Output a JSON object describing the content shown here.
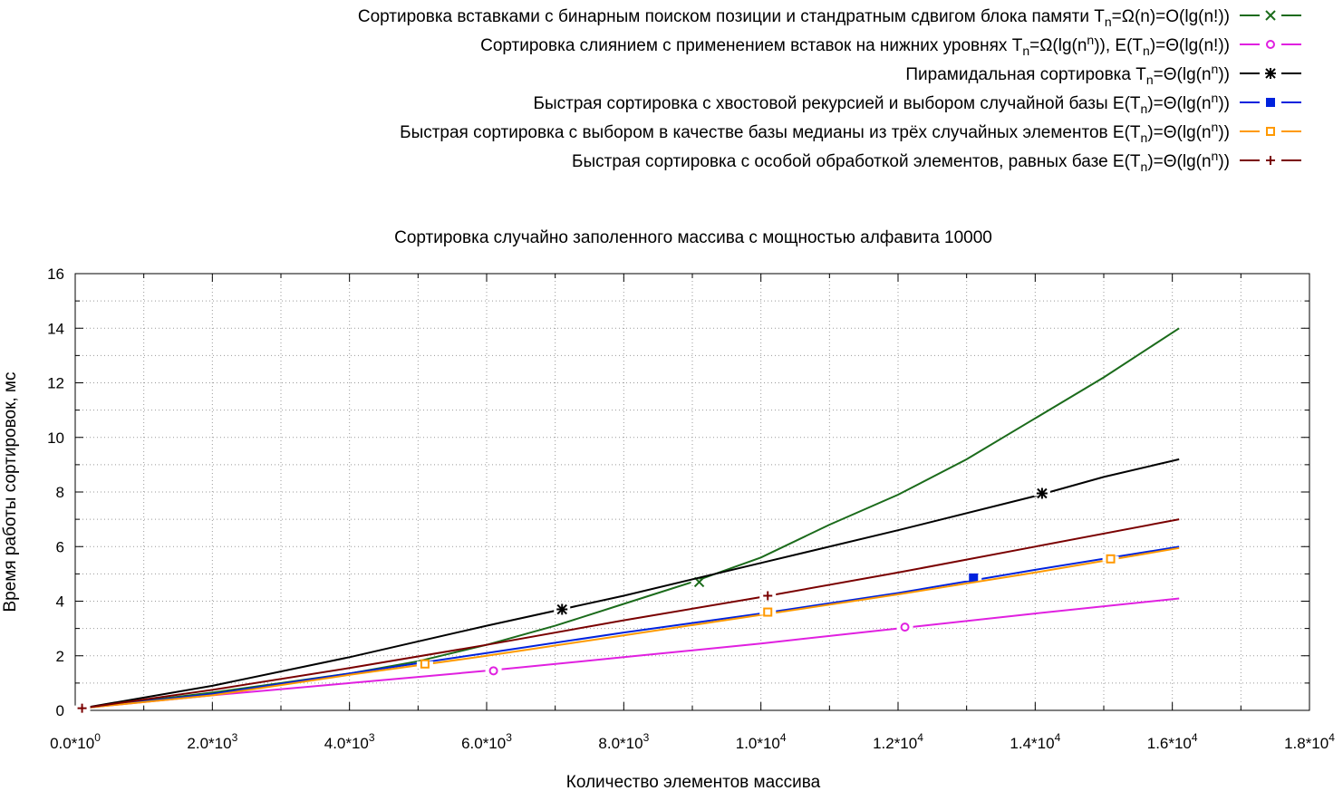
{
  "chart_data": {
    "type": "line",
    "title": "Сортировка случайно заполенного массива с мощностью алфавита 10000",
    "xlabel": "Количество элементов массива",
    "ylabel": "Время работы сортировок, мс",
    "xlim": [
      0,
      18000
    ],
    "ylim": [
      0,
      16
    ],
    "grid": true,
    "legend_position": "top-right, above plot",
    "x_ticks": [
      {
        "value": 0,
        "mant": "0.0*10",
        "exp": "0"
      },
      {
        "value": 2000,
        "mant": "2.0*10",
        "exp": "3"
      },
      {
        "value": 4000,
        "mant": "4.0*10",
        "exp": "3"
      },
      {
        "value": 6000,
        "mant": "6.0*10",
        "exp": "3"
      },
      {
        "value": 8000,
        "mant": "8.0*10",
        "exp": "3"
      },
      {
        "value": 10000,
        "mant": "1.0*10",
        "exp": "4"
      },
      {
        "value": 12000,
        "mant": "1.2*10",
        "exp": "4"
      },
      {
        "value": 14000,
        "mant": "1.4*10",
        "exp": "4"
      },
      {
        "value": 16000,
        "mant": "1.6*10",
        "exp": "4"
      },
      {
        "value": 18000,
        "mant": "1.8*10",
        "exp": "4"
      }
    ],
    "y_ticks": [
      0,
      2,
      4,
      6,
      8,
      10,
      12,
      14,
      16
    ],
    "series": [
      {
        "name": [
          {
            "t": "Сортировка вставками с бинарным поиском позиции и стандратным сдвигом блока памяти T"
          },
          {
            "t": "n",
            "sub": true
          },
          {
            "t": "=Ω(n)=O(lg(n!))"
          }
        ],
        "color": "#1b6b1b",
        "marker": "x",
        "x": [
          100,
          1000,
          2000,
          3000,
          4000,
          5000,
          6000,
          7000,
          8000,
          9000,
          10000,
          11000,
          12000,
          13000,
          14000,
          15000,
          16100
        ],
        "y": [
          0.08,
          0.35,
          0.65,
          1.0,
          1.35,
          1.8,
          2.4,
          3.1,
          3.9,
          4.7,
          5.6,
          6.8,
          7.9,
          9.2,
          10.7,
          12.2,
          14.0
        ],
        "marker_points": [
          [
            9100,
            4.7
          ]
        ]
      },
      {
        "name": [
          {
            "t": "Сортировка слиянием с применением вставок на нижних уровнях T"
          },
          {
            "t": "n",
            "sub": true
          },
          {
            "t": "=Ω(lg(n"
          },
          {
            "t": "n",
            "sup": true
          },
          {
            "t": ")), E(T"
          },
          {
            "t": "n",
            "sub": true
          },
          {
            "t": ")=Θ(lg(n!))"
          }
        ],
        "color": "#e020e0",
        "marker": "circle",
        "x": [
          100,
          2000,
          4000,
          6000,
          8000,
          10000,
          12000,
          14000,
          16100
        ],
        "y": [
          0.08,
          0.55,
          1.0,
          1.45,
          1.95,
          2.45,
          3.0,
          3.55,
          4.1
        ],
        "marker_points": [
          [
            6100,
            1.45
          ],
          [
            12100,
            3.05
          ]
        ]
      },
      {
        "name": [
          {
            "t": "Пирамидальная сортировка T"
          },
          {
            "t": "n",
            "sub": true
          },
          {
            "t": "=Θ(lg(n"
          },
          {
            "t": "n",
            "sup": true
          },
          {
            "t": "))"
          }
        ],
        "color": "#000000",
        "marker": "star",
        "x": [
          100,
          2000,
          4000,
          6000,
          8000,
          10000,
          12000,
          14000,
          15000,
          16100
        ],
        "y": [
          0.08,
          0.9,
          1.95,
          3.1,
          4.2,
          5.4,
          6.6,
          7.85,
          8.55,
          9.2
        ],
        "marker_points": [
          [
            7100,
            3.7
          ],
          [
            14100,
            7.95
          ]
        ]
      },
      {
        "name": [
          {
            "t": "Быстрая сортировка с хвостовой рекурсией и выбором случайной базы E(T"
          },
          {
            "t": "n",
            "sub": true
          },
          {
            "t": ")=Θ(lg(n"
          },
          {
            "t": "n",
            "sup": true
          },
          {
            "t": "))"
          }
        ],
        "color": "#0022dd",
        "marker": "filled-square",
        "x": [
          100,
          2000,
          4000,
          6000,
          8000,
          10000,
          12000,
          14000,
          16100
        ],
        "y": [
          0.08,
          0.6,
          1.35,
          2.1,
          2.85,
          3.55,
          4.3,
          5.15,
          6.0
        ],
        "marker_points": [
          [
            13100,
            4.85
          ]
        ]
      },
      {
        "name": [
          {
            "t": "Быстрая сортировка с выбором в качестве базы медианы из трёх случайных элементов E(T"
          },
          {
            "t": "n",
            "sub": true
          },
          {
            "t": ")=Θ(lg(n"
          },
          {
            "t": "n",
            "sup": true
          },
          {
            "t": "))"
          }
        ],
        "color": "#ff9900",
        "marker": "open-square",
        "x": [
          100,
          2000,
          4000,
          6000,
          8000,
          10000,
          12000,
          14000,
          16100
        ],
        "y": [
          0.08,
          0.55,
          1.3,
          2.0,
          2.75,
          3.5,
          4.25,
          5.05,
          5.95
        ],
        "marker_points": [
          [
            5100,
            1.7
          ],
          [
            10100,
            3.6
          ],
          [
            15100,
            5.55
          ]
        ]
      },
      {
        "name": [
          {
            "t": "Быстрая сортировка с особой обработкой элементов, равных базе E(T"
          },
          {
            "t": "n",
            "sub": true
          },
          {
            "t": ")=Θ(lg(n"
          },
          {
            "t": "n",
            "sup": true
          },
          {
            "t": "))"
          }
        ],
        "color": "#7a0000",
        "marker": "plus",
        "x": [
          100,
          2000,
          4000,
          6000,
          8000,
          10000,
          12000,
          14000,
          16100
        ],
        "y": [
          0.08,
          0.75,
          1.55,
          2.4,
          3.3,
          4.15,
          5.05,
          6.0,
          7.0
        ],
        "marker_points": [
          [
            100,
            0.08
          ],
          [
            10100,
            4.2
          ]
        ]
      }
    ]
  }
}
